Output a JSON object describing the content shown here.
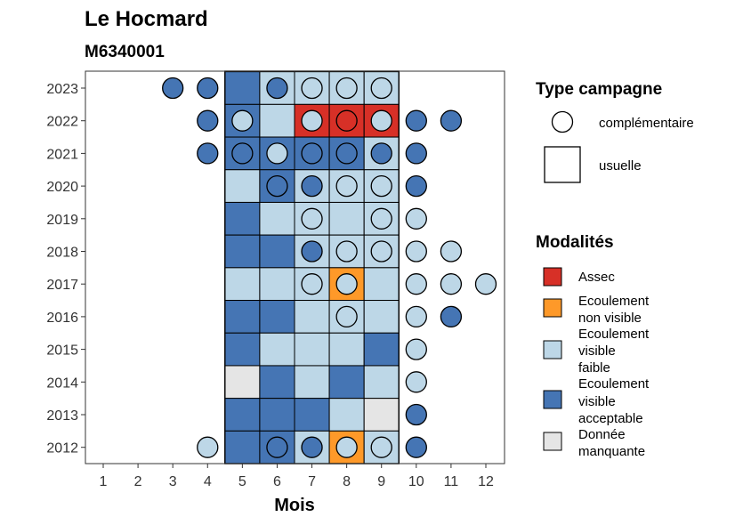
{
  "title": "Le Hocmard",
  "subtitle": "M6340001",
  "x_axis_label": "Mois",
  "legend_type": {
    "title": "Type campagne",
    "items": [
      {
        "key": "complementaire",
        "label": "complémentaire",
        "shape": "circle"
      },
      {
        "key": "usuelle",
        "label": "usuelle",
        "shape": "square"
      }
    ]
  },
  "legend_modalites": {
    "title": "Modalités",
    "items": [
      {
        "key": "A",
        "lines": [
          "Assec"
        ],
        "color": "#d73027"
      },
      {
        "key": "N",
        "lines": [
          "Ecoulement",
          "non visible"
        ],
        "color": "#fe9929"
      },
      {
        "key": "F",
        "lines": [
          "Ecoulement",
          "visible",
          "faible"
        ],
        "color": "#bdd7e7"
      },
      {
        "key": "V",
        "lines": [
          "Ecoulement",
          "visible",
          "acceptable"
        ],
        "color": "#4575b4"
      },
      {
        "key": "D",
        "lines": [
          "Donnée",
          "manquante"
        ],
        "color": "#e5e5e5"
      }
    ]
  },
  "chart_data": {
    "type": "heatmap",
    "x_ticks": [
      "1",
      "2",
      "3",
      "4",
      "5",
      "6",
      "7",
      "8",
      "9",
      "10",
      "11",
      "12"
    ],
    "y_ticks": [
      "2012",
      "2013",
      "2014",
      "2015",
      "2016",
      "2017",
      "2018",
      "2019",
      "2020",
      "2021",
      "2022",
      "2023"
    ],
    "highlight_months": [
      5,
      6,
      7,
      8,
      9
    ],
    "colors": {
      "A": "#d73027",
      "N": "#fe9929",
      "F": "#bdd7e7",
      "V": "#4575b4",
      "D": "#e5e5e5"
    },
    "usuelle": [
      {
        "year": 2023,
        "values": {
          "5": "V",
          "6": "F",
          "7": "F",
          "8": "F",
          "9": "F"
        }
      },
      {
        "year": 2022,
        "values": {
          "5": "V",
          "6": "F",
          "7": "A",
          "8": "A",
          "9": "A"
        }
      },
      {
        "year": 2021,
        "values": {
          "5": "V",
          "6": "V",
          "7": "V",
          "8": "V",
          "9": "F"
        }
      },
      {
        "year": 2020,
        "values": {
          "5": "F",
          "6": "V",
          "7": "F",
          "8": "F",
          "9": "F"
        }
      },
      {
        "year": 2019,
        "values": {
          "5": "V",
          "6": "F",
          "7": "F",
          "8": "F",
          "9": "F"
        }
      },
      {
        "year": 2018,
        "values": {
          "5": "V",
          "6": "V",
          "7": "F",
          "8": "F",
          "9": "F"
        }
      },
      {
        "year": 2017,
        "values": {
          "5": "F",
          "6": "F",
          "7": "F",
          "8": "N",
          "9": "F"
        }
      },
      {
        "year": 2016,
        "values": {
          "5": "V",
          "6": "V",
          "7": "F",
          "8": "F",
          "9": "F"
        }
      },
      {
        "year": 2015,
        "values": {
          "5": "V",
          "6": "F",
          "7": "F",
          "8": "F",
          "9": "V"
        }
      },
      {
        "year": 2014,
        "values": {
          "5": "D",
          "6": "V",
          "7": "F",
          "8": "V",
          "9": "F"
        }
      },
      {
        "year": 2013,
        "values": {
          "5": "V",
          "6": "V",
          "7": "V",
          "8": "F",
          "9": "D"
        }
      },
      {
        "year": 2012,
        "values": {
          "5": "V",
          "6": "V",
          "7": "F",
          "8": "N",
          "9": "F"
        }
      }
    ],
    "complementaire": [
      {
        "year": 2023,
        "month": 3,
        "v": "V"
      },
      {
        "year": 2023,
        "month": 4,
        "v": "V"
      },
      {
        "year": 2023,
        "month": 6,
        "v": "V"
      },
      {
        "year": 2023,
        "month": 7,
        "v": "F"
      },
      {
        "year": 2023,
        "month": 8,
        "v": "F"
      },
      {
        "year": 2023,
        "month": 9,
        "v": "F"
      },
      {
        "year": 2022,
        "month": 4,
        "v": "V"
      },
      {
        "year": 2022,
        "month": 5,
        "v": "F"
      },
      {
        "year": 2022,
        "month": 7,
        "v": "F"
      },
      {
        "year": 2022,
        "month": 8,
        "v": "A"
      },
      {
        "year": 2022,
        "month": 9,
        "v": "F"
      },
      {
        "year": 2022,
        "month": 10,
        "v": "V"
      },
      {
        "year": 2022,
        "month": 11,
        "v": "V"
      },
      {
        "year": 2021,
        "month": 4,
        "v": "V"
      },
      {
        "year": 2021,
        "month": 5,
        "v": "V"
      },
      {
        "year": 2021,
        "month": 6,
        "v": "F"
      },
      {
        "year": 2021,
        "month": 7,
        "v": "V"
      },
      {
        "year": 2021,
        "month": 8,
        "v": "V"
      },
      {
        "year": 2021,
        "month": 9,
        "v": "V"
      },
      {
        "year": 2021,
        "month": 10,
        "v": "V"
      },
      {
        "year": 2020,
        "month": 6,
        "v": "V"
      },
      {
        "year": 2020,
        "month": 7,
        "v": "V"
      },
      {
        "year": 2020,
        "month": 8,
        "v": "F"
      },
      {
        "year": 2020,
        "month": 9,
        "v": "F"
      },
      {
        "year": 2020,
        "month": 10,
        "v": "V"
      },
      {
        "year": 2019,
        "month": 7,
        "v": "F"
      },
      {
        "year": 2019,
        "month": 9,
        "v": "F"
      },
      {
        "year": 2019,
        "month": 10,
        "v": "F"
      },
      {
        "year": 2018,
        "month": 7,
        "v": "V"
      },
      {
        "year": 2018,
        "month": 8,
        "v": "F"
      },
      {
        "year": 2018,
        "month": 9,
        "v": "F"
      },
      {
        "year": 2018,
        "month": 10,
        "v": "F"
      },
      {
        "year": 2018,
        "month": 11,
        "v": "F"
      },
      {
        "year": 2017,
        "month": 7,
        "v": "F"
      },
      {
        "year": 2017,
        "month": 8,
        "v": "F"
      },
      {
        "year": 2017,
        "month": 10,
        "v": "F"
      },
      {
        "year": 2017,
        "month": 11,
        "v": "F"
      },
      {
        "year": 2017,
        "month": 12,
        "v": "F"
      },
      {
        "year": 2016,
        "month": 8,
        "v": "F"
      },
      {
        "year": 2016,
        "month": 10,
        "v": "F"
      },
      {
        "year": 2016,
        "month": 11,
        "v": "V"
      },
      {
        "year": 2015,
        "month": 10,
        "v": "F"
      },
      {
        "year": 2014,
        "month": 10,
        "v": "F"
      },
      {
        "year": 2013,
        "month": 10,
        "v": "V"
      },
      {
        "year": 2012,
        "month": 4,
        "v": "F"
      },
      {
        "year": 2012,
        "month": 6,
        "v": "V"
      },
      {
        "year": 2012,
        "month": 7,
        "v": "V"
      },
      {
        "year": 2012,
        "month": 8,
        "v": "F"
      },
      {
        "year": 2012,
        "month": 9,
        "v": "F"
      },
      {
        "year": 2012,
        "month": 10,
        "v": "V"
      }
    ]
  }
}
